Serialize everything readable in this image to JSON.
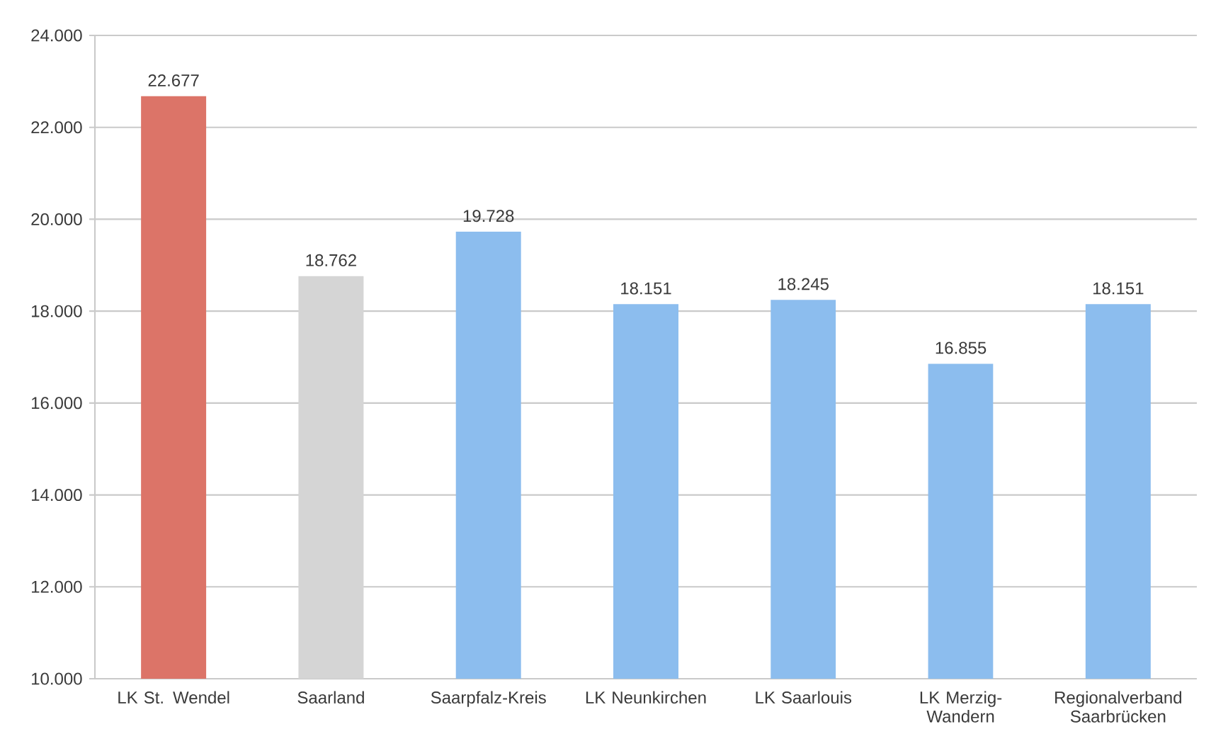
{
  "chart_data": {
    "type": "bar",
    "categories": [
      "LK St. Wendel",
      "Saarland",
      "Saarpfalz-Kreis",
      "LK Neunkirchen",
      "LK Saarlouis",
      "LK Merzig-Wandern",
      "Regionalverband Saarbrücken"
    ],
    "values": [
      22677,
      18762,
      19728,
      18151,
      18245,
      16855,
      18151
    ],
    "value_labels": [
      "22.677",
      "18.762",
      "19.728",
      "18.151",
      "18.245",
      "16.855",
      "18.151"
    ],
    "colors": [
      "#dc7468",
      "#d5d5d5",
      "#8cbdee",
      "#8cbdee",
      "#8cbdee",
      "#8cbdee",
      "#8cbdee"
    ],
    "ylim": [
      10000,
      24000
    ],
    "yticks": [
      {
        "value": 10000,
        "label": "10.000"
      },
      {
        "value": 12000,
        "label": "12.000"
      },
      {
        "value": 14000,
        "label": "14.000"
      },
      {
        "value": 16000,
        "label": "16.000"
      },
      {
        "value": 18000,
        "label": "18.000"
      },
      {
        "value": 20000,
        "label": "20.000"
      },
      {
        "value": 22000,
        "label": "22.000"
      },
      {
        "value": 24000,
        "label": "24.000"
      }
    ],
    "grid": "y"
  }
}
